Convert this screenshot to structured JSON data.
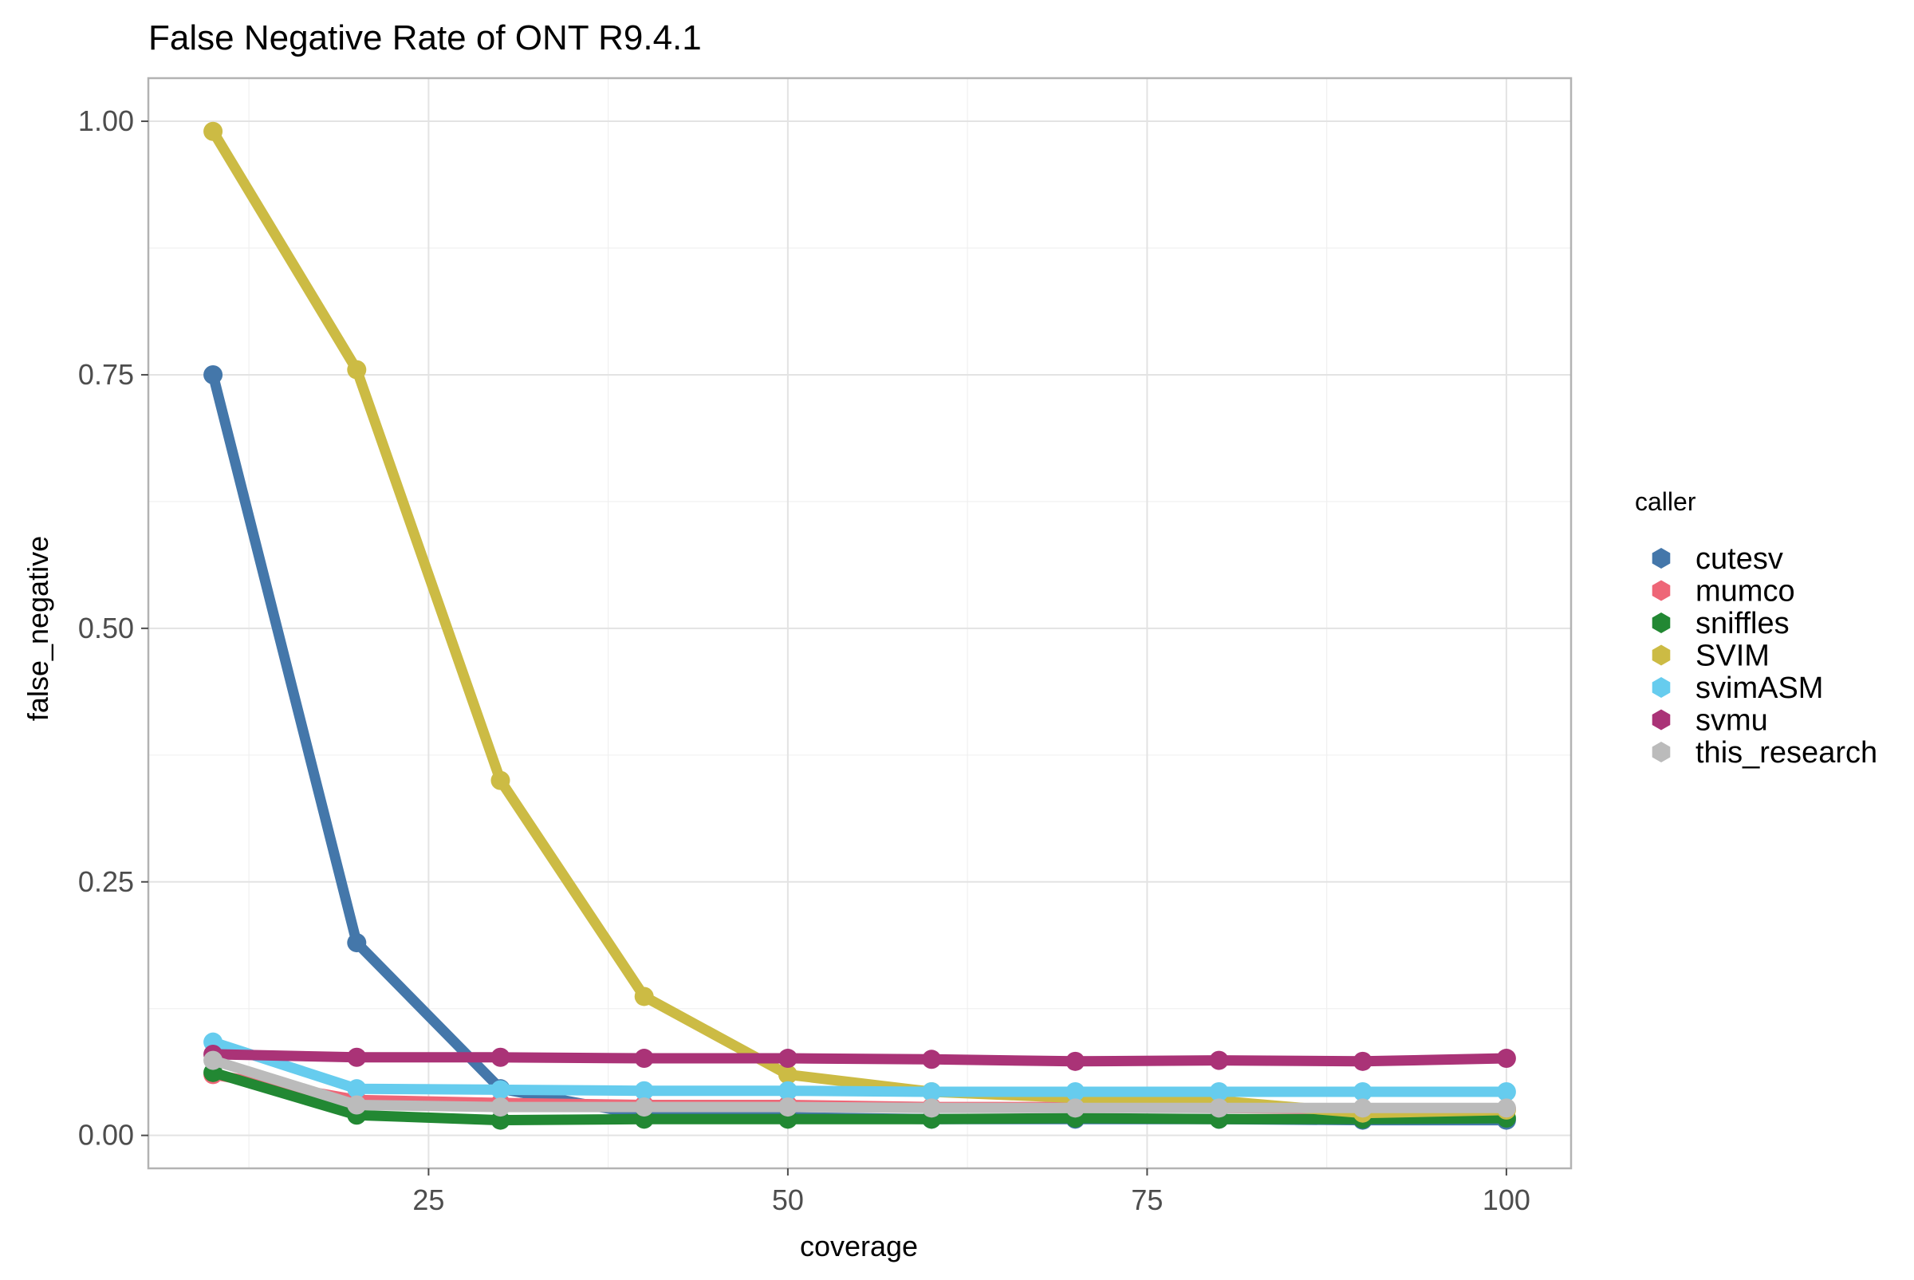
{
  "chart_data": {
    "type": "line",
    "title": "False Negative Rate of ONT R9.4.1",
    "xlabel": "coverage",
    "ylabel": "false_negative",
    "xlim": [
      5.5,
      104.5
    ],
    "ylim": [
      -0.0325,
      1.0425
    ],
    "xticks": [
      25,
      50,
      75,
      100
    ],
    "xtick_labels": [
      "25",
      "50",
      "75",
      "100"
    ],
    "yticks": [
      0,
      0.25,
      0.5,
      0.75,
      1.0
    ],
    "ytick_labels": [
      "0.00",
      "0.25",
      "0.50",
      "0.75",
      "1.00"
    ],
    "grid": true,
    "legend_title": "caller",
    "legend_position": "right",
    "x": [
      10,
      20,
      30,
      40,
      50,
      60,
      70,
      80,
      90,
      100
    ],
    "series": [
      {
        "name": "cutesv",
        "color": "#4477AA",
        "values": [
          0.75,
          0.19,
          0.046,
          0.02,
          0.018,
          0.016,
          0.016,
          0.016,
          0.015,
          0.015
        ]
      },
      {
        "name": "mumco",
        "color": "#EE6677",
        "values": [
          0.06,
          0.035,
          0.032,
          0.03,
          0.03,
          0.028,
          0.028,
          0.027,
          0.026,
          0.026
        ]
      },
      {
        "name": "sniffles",
        "color": "#228833",
        "values": [
          0.062,
          0.02,
          0.015,
          0.016,
          0.016,
          0.016,
          0.017,
          0.016,
          0.016,
          0.017
        ]
      },
      {
        "name": "SVIM",
        "color": "#CCBB44",
        "values": [
          0.99,
          0.755,
          0.35,
          0.137,
          0.06,
          0.043,
          0.037,
          0.034,
          0.022,
          0.025
        ]
      },
      {
        "name": "svimASM",
        "color": "#66CCEE",
        "values": [
          0.092,
          0.046,
          0.045,
          0.044,
          0.044,
          0.043,
          0.043,
          0.043,
          0.043,
          0.043
        ]
      },
      {
        "name": "svmu",
        "color": "#AA3377",
        "values": [
          0.08,
          0.077,
          0.077,
          0.076,
          0.076,
          0.075,
          0.073,
          0.074,
          0.073,
          0.076
        ]
      },
      {
        "name": "this_research",
        "color": "#BBBBBB",
        "values": [
          0.074,
          0.03,
          0.028,
          0.028,
          0.028,
          0.027,
          0.027,
          0.027,
          0.027,
          0.027
        ]
      }
    ]
  }
}
